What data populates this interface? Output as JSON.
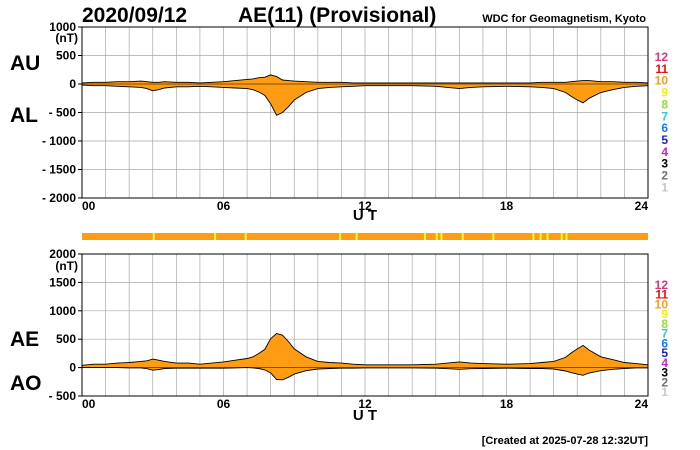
{
  "header": {
    "date": "2020/09/12",
    "title": "AE(11) (Provisional)",
    "source": "WDC for Geomagnetism, Kyoto"
  },
  "footer": {
    "created": "[Created at 2025-07-28 12:32UT]"
  },
  "colors": {
    "fill": "#ff9c14",
    "band": "#ff9c14",
    "band_highlight": "#ffff30",
    "line": "#000000"
  },
  "legend": {
    "items": [
      {
        "label": "12",
        "color": "#e8307a"
      },
      {
        "label": "11",
        "color": "#e81010"
      },
      {
        "label": "10",
        "color": "#ff9c14"
      },
      {
        "label": "9",
        "color": "#f0f000"
      },
      {
        "label": "8",
        "color": "#90e030"
      },
      {
        "label": "7",
        "color": "#30c8e8"
      },
      {
        "label": "6",
        "color": "#1878f0"
      },
      {
        "label": "5",
        "color": "#2020c0"
      },
      {
        "label": "4",
        "color": "#d020d0"
      },
      {
        "label": "3",
        "color": "#000000"
      },
      {
        "label": "2",
        "color": "#707070"
      },
      {
        "label": "1",
        "color": "#c8c8c8"
      }
    ]
  },
  "band": {
    "highlight_hours": [
      3.0,
      5.6,
      6.9,
      10.9,
      11.6,
      14.5,
      15.0,
      15.2,
      16.1,
      17.4,
      19.1,
      19.4,
      19.7,
      20.3,
      20.5
    ]
  },
  "chart_data": [
    {
      "type": "area",
      "labels_left": [
        "AU",
        "AL"
      ],
      "ylabel": "(nT)",
      "xlabel": "U T",
      "xlim": [
        0,
        24
      ],
      "ylim": [
        -2000,
        1000
      ],
      "xticks": [
        "00",
        "06",
        "12",
        "18",
        "24"
      ],
      "yticks": [
        1000,
        500,
        0,
        -500,
        -1000,
        -1500,
        -2000
      ],
      "ytick_labels": [
        "1000",
        "500",
        "0",
        "- 500",
        "- 1000",
        "- 1500",
        "- 2000"
      ],
      "grid": true,
      "x": [
        0,
        0.5,
        1,
        1.5,
        2,
        2.5,
        2.75,
        3,
        3.25,
        3.5,
        4,
        4.5,
        5,
        5.5,
        6,
        6.5,
        7,
        7.25,
        7.5,
        7.75,
        8,
        8.25,
        8.5,
        8.75,
        9,
        9.5,
        10,
        10.5,
        11,
        11.5,
        12,
        13,
        14,
        15,
        15.5,
        16,
        16.5,
        17,
        18,
        19,
        19.5,
        20,
        20.5,
        20.75,
        21,
        21.25,
        21.5,
        22,
        22.5,
        23,
        23.5,
        24
      ],
      "series": [
        {
          "name": "AU",
          "values": [
            20,
            30,
            30,
            40,
            40,
            50,
            40,
            30,
            30,
            40,
            30,
            30,
            20,
            30,
            40,
            60,
            80,
            90,
            110,
            120,
            160,
            130,
            70,
            60,
            50,
            40,
            30,
            30,
            30,
            20,
            20,
            20,
            20,
            20,
            20,
            20,
            20,
            20,
            20,
            20,
            30,
            30,
            30,
            40,
            50,
            60,
            60,
            40,
            40,
            30,
            30,
            20
          ]
        },
        {
          "name": "AL",
          "values": [
            -20,
            -30,
            -30,
            -40,
            -50,
            -60,
            -80,
            -120,
            -100,
            -70,
            -50,
            -50,
            -40,
            -50,
            -60,
            -70,
            -80,
            -100,
            -140,
            -200,
            -350,
            -550,
            -500,
            -400,
            -280,
            -150,
            -80,
            -60,
            -50,
            -40,
            -30,
            -30,
            -30,
            -40,
            -60,
            -80,
            -60,
            -50,
            -40,
            -50,
            -60,
            -80,
            -150,
            -220,
            -280,
            -330,
            -250,
            -150,
            -100,
            -60,
            -40,
            -30
          ]
        }
      ]
    },
    {
      "type": "area",
      "labels_left": [
        "AE",
        "AO"
      ],
      "ylabel": "(nT)",
      "xlabel": "U T",
      "xlim": [
        0,
        24
      ],
      "ylim": [
        -500,
        2000
      ],
      "xticks": [
        "00",
        "06",
        "12",
        "18",
        "24"
      ],
      "yticks": [
        2000,
        1500,
        1000,
        500,
        0,
        -500
      ],
      "ytick_labels": [
        "2000",
        "1500",
        "1000",
        "500",
        "0",
        "- 500"
      ],
      "grid": true,
      "x": [
        0,
        0.5,
        1,
        1.5,
        2,
        2.5,
        2.75,
        3,
        3.25,
        3.5,
        4,
        4.5,
        5,
        5.5,
        6,
        6.5,
        7,
        7.25,
        7.5,
        7.75,
        8,
        8.25,
        8.5,
        8.75,
        9,
        9.5,
        10,
        10.5,
        11,
        11.5,
        12,
        13,
        14,
        15,
        15.5,
        16,
        16.5,
        17,
        18,
        19,
        19.5,
        20,
        20.5,
        20.75,
        21,
        21.25,
        21.5,
        22,
        22.5,
        23,
        23.5,
        24
      ],
      "series": [
        {
          "name": "AE",
          "values": [
            40,
            60,
            60,
            80,
            90,
            110,
            120,
            150,
            130,
            110,
            80,
            80,
            60,
            80,
            100,
            130,
            160,
            190,
            250,
            320,
            510,
            600,
            570,
            460,
            330,
            190,
            110,
            90,
            80,
            60,
            50,
            50,
            50,
            60,
            80,
            100,
            80,
            70,
            60,
            70,
            90,
            110,
            180,
            260,
            330,
            390,
            310,
            190,
            140,
            90,
            70,
            50
          ]
        },
        {
          "name": "AO",
          "values": [
            0,
            0,
            0,
            0,
            -5,
            -5,
            -20,
            -45,
            -35,
            -15,
            -10,
            -10,
            -10,
            -10,
            -10,
            -5,
            0,
            -5,
            -15,
            -40,
            -95,
            -210,
            -215,
            -170,
            -115,
            -55,
            -25,
            -15,
            -10,
            -10,
            -5,
            -5,
            -5,
            -10,
            -20,
            -30,
            -20,
            -15,
            -10,
            -15,
            -15,
            -25,
            -60,
            -90,
            -115,
            -135,
            -95,
            -55,
            -30,
            -15,
            -5,
            -5
          ]
        }
      ]
    }
  ]
}
